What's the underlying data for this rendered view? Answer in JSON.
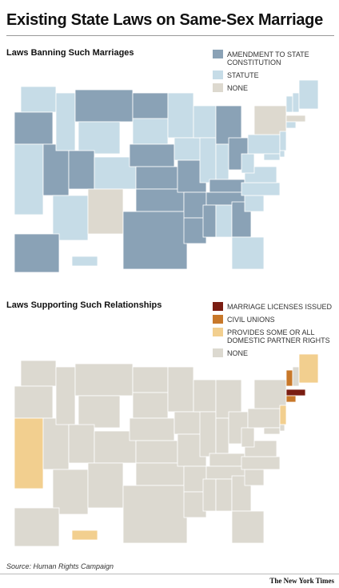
{
  "title": "Existing State Laws on Same-Sex Marriage",
  "maps": [
    {
      "subtitle": "Laws Banning Such Marriages",
      "legend": [
        {
          "name": "AMENDMENT TO STATE CONSTITUTION",
          "color": "#8aa2b6"
        },
        {
          "name": "STATUTE",
          "color": "#c6dce7"
        },
        {
          "name": "NONE",
          "color": "#ddd9cf"
        }
      ]
    },
    {
      "subtitle": "Laws Supporting Such Relationships",
      "legend": [
        {
          "name": "MARRIAGE LICENSES ISSUED",
          "color": "#7a1d12"
        },
        {
          "name": "CIVIL UNIONS",
          "color": "#c8782a"
        },
        {
          "name": "PROVIDES SOME OR ALL DOMESTIC PARTNER RIGHTS",
          "color": "#f2cf8f"
        },
        {
          "name": "NONE",
          "color": "#dcd9d0"
        }
      ]
    }
  ],
  "source": "Source: Human Rights Campaign",
  "credit": "The New York Times"
}
